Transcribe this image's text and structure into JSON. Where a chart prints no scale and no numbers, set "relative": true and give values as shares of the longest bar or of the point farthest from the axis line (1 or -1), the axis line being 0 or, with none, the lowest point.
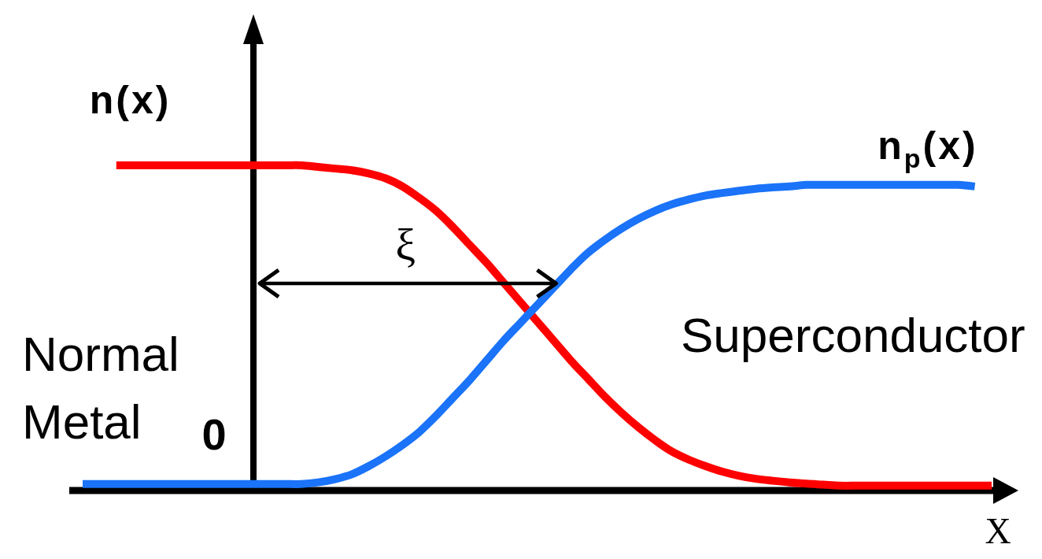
{
  "chart_data": {
    "type": "line",
    "relative": true,
    "xlabel": "X",
    "categories": [
      null,
      null,
      null,
      null,
      null,
      null,
      null,
      null,
      null,
      null,
      null,
      null,
      null,
      null,
      null,
      null,
      null,
      null,
      null,
      null,
      null,
      null,
      null,
      null,
      null,
      null,
      null,
      null,
      null,
      null,
      null,
      null,
      null,
      null,
      null,
      null,
      null,
      null,
      null,
      null,
      null,
      null,
      null,
      null,
      null,
      null,
      null,
      null,
      null,
      null,
      null,
      null,
      null,
      null,
      null
    ],
    "series": [
      {
        "name": "n(x)",
        "color": "#ff0000",
        "values": [
          null,
          null,
          1.0,
          1.0,
          1.0,
          1.0,
          1.0,
          1.0,
          1.0,
          1.0,
          1.0,
          1.0,
          1.0,
          1.0,
          0.995,
          0.99,
          0.985,
          0.975,
          0.96,
          0.935,
          0.9,
          0.86,
          0.81,
          0.755,
          0.7,
          0.64,
          0.58,
          0.52,
          0.46,
          0.4,
          0.345,
          0.29,
          0.24,
          0.195,
          0.155,
          0.12,
          0.095,
          0.075,
          0.058,
          0.045,
          0.036,
          0.03,
          0.025,
          0.021,
          0.018,
          0.015,
          0.015,
          0.015,
          0.015,
          0.015,
          0.015,
          0.015,
          0.015,
          0.015,
          0.015
        ]
      },
      {
        "name": "n$_{p}$(x)",
        "color": "#1a73f8",
        "values": [
          0.02,
          0.02,
          0.02,
          0.02,
          0.02,
          0.02,
          0.02,
          0.02,
          0.02,
          0.02,
          0.02,
          0.02,
          0.02,
          0.02,
          0.025,
          0.035,
          0.05,
          0.075,
          0.105,
          0.14,
          0.18,
          0.23,
          0.285,
          0.34,
          0.4,
          0.46,
          0.515,
          0.57,
          0.625,
          0.68,
          0.73,
          0.77,
          0.805,
          0.835,
          0.86,
          0.88,
          0.895,
          0.907,
          0.915,
          0.922,
          0.928,
          0.932,
          0.935,
          0.94,
          0.94,
          0.94,
          0.94,
          0.94,
          0.94,
          0.94,
          0.94,
          0.94,
          0.94,
          0.935,
          null
        ]
      }
    ],
    "annotations": [
      "Normal Metal",
      "Superconductor",
      "0",
      "ξ"
    ]
  }
}
